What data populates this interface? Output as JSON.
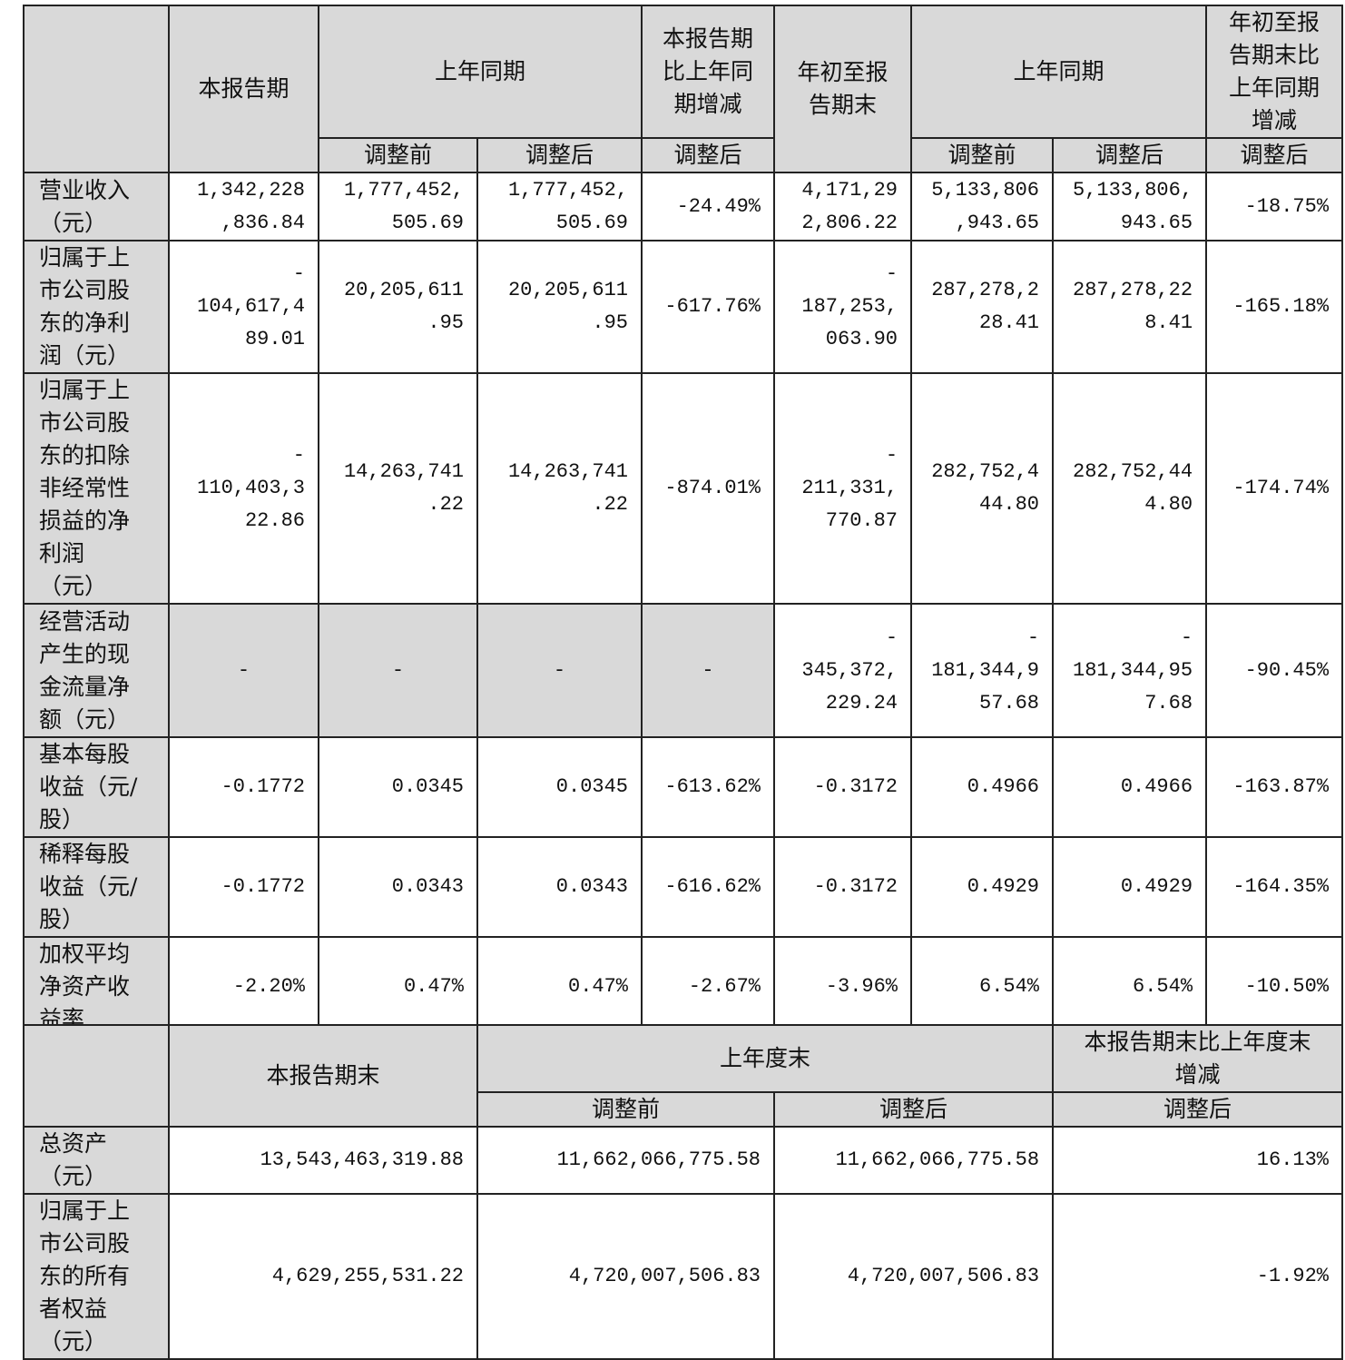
{
  "top_table": {
    "header": {
      "current_period": "本报告期",
      "same_period_last_year": "上年同期",
      "change_current": "本报告期\n比上年同\n期增减",
      "ytd": "年初至报\n告期末",
      "same_period_last_year_ytd": "上年同期",
      "change_ytd": "年初至报\n告期末比\n上年同期\n增减",
      "before_adjust": "调整前",
      "after_adjust": "调整后"
    },
    "rows": [
      {
        "label": "营业收入\n（元）",
        "values": [
          "1,342,228\n,836.84",
          "1,777,452,\n505.69",
          "1,777,452,\n505.69",
          "-24.49%",
          "4,171,29\n2,806.22",
          "5,133,806\n,943.65",
          "5,133,806,\n943.65",
          "-18.75%"
        ]
      },
      {
        "label": "归属于上\n市公司股\n东的净利\n润（元）",
        "values": [
          "-\n104,617,4\n89.01",
          "20,205,611\n.95",
          "20,205,611\n.95",
          "-617.76%",
          "-\n187,253,\n063.90",
          "287,278,2\n28.41",
          "287,278,22\n8.41",
          "-165.18%"
        ]
      },
      {
        "label": "归属于上\n市公司股\n东的扣除\n非经常性\n损益的净\n利润\n（元）",
        "values": [
          "-\n110,403,3\n22.86",
          "14,263,741\n.22",
          "14,263,741\n.22",
          "-874.01%",
          "-\n211,331,\n770.87",
          "282,752,4\n44.80",
          "282,752,44\n4.80",
          "-174.74%"
        ]
      },
      {
        "label": "经营活动\n产生的现\n金流量净\n额（元）",
        "values": [
          "-",
          "-",
          "-",
          "-",
          "-\n345,372,\n229.24",
          "-\n181,344,9\n57.68",
          "-\n181,344,95\n7.68",
          "-90.45%"
        ]
      },
      {
        "label": "基本每股\n收益（元/\n股）",
        "values": [
          "-0.1772",
          "0.0345",
          "0.0345",
          "-613.62%",
          "-0.3172",
          "0.4966",
          "0.4966",
          "-163.87%"
        ]
      },
      {
        "label": "稀释每股\n收益（元/\n股）",
        "values": [
          "-0.1772",
          "0.0343",
          "0.0343",
          "-616.62%",
          "-0.3172",
          "0.4929",
          "0.4929",
          "-164.35%"
        ]
      },
      {
        "label": "加权平均\n净资产收\n益率",
        "values": [
          "-2.20%",
          "0.47%",
          "0.47%",
          "-2.67%",
          "-3.96%",
          "6.54%",
          "6.54%",
          "-10.50%"
        ]
      }
    ]
  },
  "bottom_table": {
    "header": {
      "period_end": "本报告期末",
      "last_year_end": "上年度末",
      "change": "本报告期末比上年度末\n增减",
      "before_adjust": "调整前",
      "after_adjust": "调整后"
    },
    "rows": [
      {
        "label": "总资产\n（元）",
        "values": [
          "13,543,463,319.88",
          "11,662,066,775.58",
          "11,662,066,775.58",
          "16.13%"
        ]
      },
      {
        "label": "归属于上\n市公司股\n东的所有\n者权益\n（元）",
        "values": [
          "4,629,255,531.22",
          "4,720,007,506.83",
          "4,720,007,506.83",
          "-1.92%"
        ]
      }
    ]
  },
  "colors": {
    "header_bg": "#d9d9d9",
    "border": "#222222"
  }
}
